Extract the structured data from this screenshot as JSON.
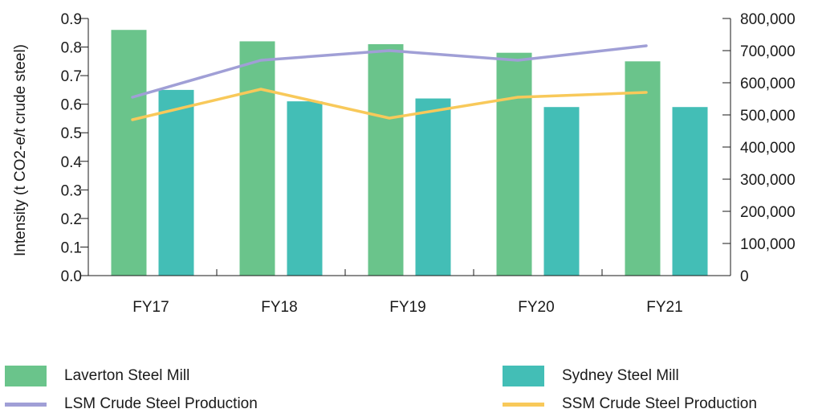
{
  "chart_data": {
    "type": "bar",
    "categories": [
      "FY17",
      "FY18",
      "FY19",
      "FY20",
      "FY21"
    ],
    "ylabel": "Intensity (t CO2-e/t crude steel)",
    "y_ticks": [
      "0.0",
      "0.1",
      "0.2",
      "0.3",
      "0.4",
      "0.5",
      "0.6",
      "0.7",
      "0.8",
      "0.9"
    ],
    "ylim": [
      0,
      0.9
    ],
    "y2_ticks": [
      "0",
      "100,000",
      "200,000",
      "300,000",
      "400,000",
      "500,000",
      "600,000",
      "700,000",
      "800,000"
    ],
    "y2lim": [
      0,
      800000
    ],
    "grid": false,
    "legend_position": "bottom",
    "bar_series": [
      {
        "name": "Laverton Steel Mill",
        "color": "#6ac48b",
        "values": [
          0.86,
          0.82,
          0.81,
          0.78,
          0.75
        ]
      },
      {
        "name": "Sydney Steel Mill",
        "color": "#43beb6",
        "values": [
          0.65,
          0.61,
          0.62,
          0.59,
          0.59
        ]
      }
    ],
    "line_series": [
      {
        "name": "LSM Crude Steel Production",
        "color": "#a09fd6",
        "axis": "right",
        "values": [
          555000,
          670000,
          700000,
          670000,
          715000
        ]
      },
      {
        "name": "SSM Crude Steel Production",
        "color": "#f8c95a",
        "axis": "right",
        "values": [
          485000,
          580000,
          490000,
          555000,
          570000
        ]
      }
    ]
  }
}
